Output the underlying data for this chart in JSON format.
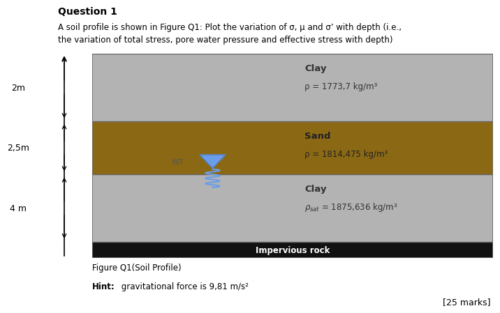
{
  "title": "Question 1",
  "subtitle_line1": "A soil profile is shown in Figure Q1: Plot the variation of σ, μ and σ’ with depth (i.e.,",
  "subtitle_line2": "the variation of total stress, pore water pressure and effective stress with depth)",
  "bg_color": "#ffffff",
  "clay1_color": "#b3b3b3",
  "sand_color": "#8B6914",
  "clay2_color": "#b3b3b3",
  "rock_color": "#111111",
  "border_color": "#666666",
  "figure_caption": "Figure Q1(Soil Profile)",
  "hint_bold": "Hint:",
  "hint_rest": " gravitational force is 9,81 m/s²",
  "marks": "[25 marks]",
  "clay1_name": "Clay",
  "clay1_density": "ρ = 1773,7 kg/m³",
  "sand_name": "Sand",
  "sand_density": "ρ = 1814,475 kg/m³",
  "clay2_name": "Clay",
  "clay2_density": "ρsat = 1875,636 kg/m³",
  "rock_name": "Impervious rock",
  "wt_label": "WT",
  "depth_labels": [
    "2m",
    "2,5m",
    "4 m"
  ]
}
